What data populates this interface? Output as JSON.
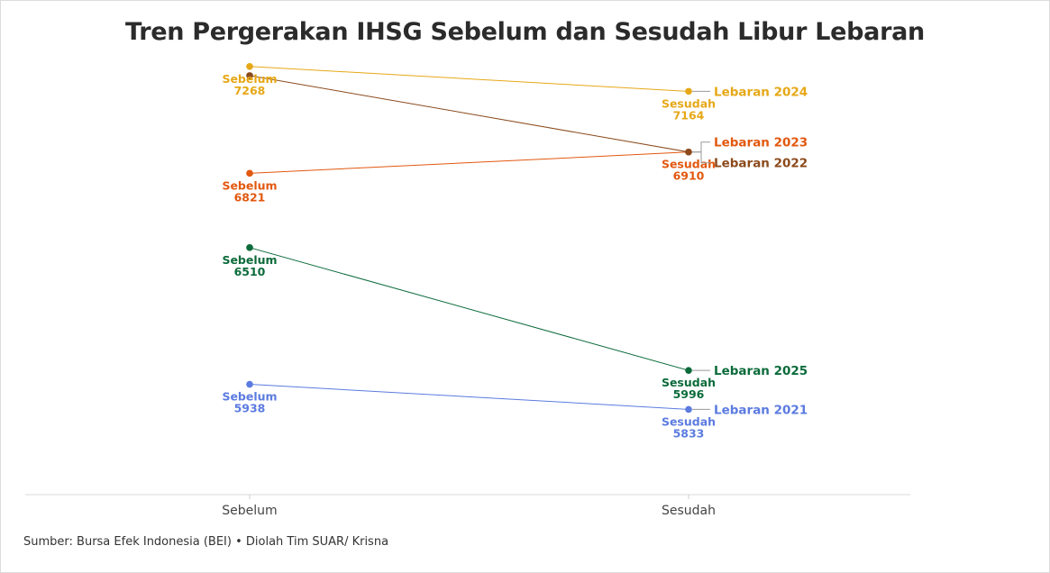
{
  "title": "Tren Pergerakan IHSG Sebelum dan Sesudah Libur Lebaran",
  "source": "Sumber: Bursa Efek Indonesia (BEI) • Diolah Tim SUAR/ Krisna",
  "chart_data": {
    "type": "line",
    "subtype": "slope",
    "title": "Tren Pergerakan IHSG Sebelum dan Sesudah Libur Lebaran",
    "categories": [
      "Sebelum",
      "Sesudah"
    ],
    "ylim": [
      5480,
      7320
    ],
    "grid": false,
    "legend": "direct-labels-right",
    "series": [
      {
        "name": "Lebaran 2024",
        "values": [
          7268,
          7164
        ],
        "color": "#E6A817"
      },
      {
        "name": "Lebaran 2023",
        "values": [
          6821,
          6910
        ],
        "color": "#E2580F"
      },
      {
        "name": "Lebaran 2022",
        "values": [
          7230,
          6910
        ],
        "color": "#8B4A1C"
      },
      {
        "name": "Lebaran 2025",
        "values": [
          6510,
          5996
        ],
        "color": "#0B6B3A"
      },
      {
        "name": "Lebaran 2021",
        "values": [
          5938,
          5833
        ],
        "color": "#5B7BE0"
      }
    ]
  }
}
